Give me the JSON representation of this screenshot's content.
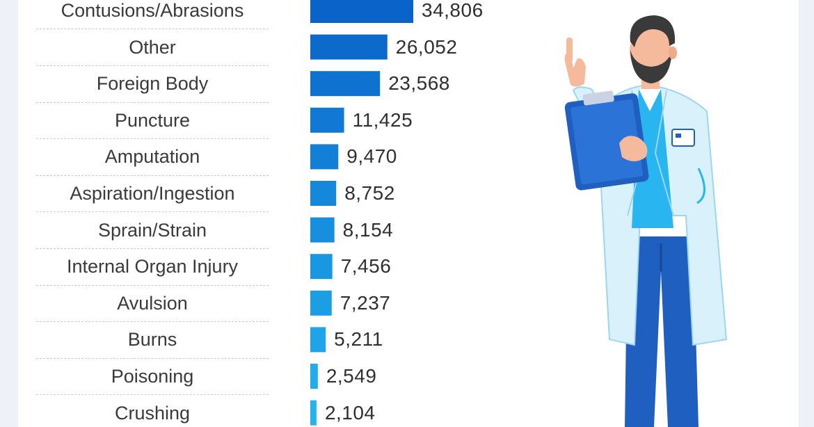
{
  "chart_data": {
    "type": "bar",
    "orientation": "horizontal",
    "categories": [
      "Contusions/Abrasions",
      "Other",
      "Foreign Body",
      "Puncture",
      "Amputation",
      "Aspiration/Ingestion",
      "Sprain/Strain",
      "Internal Organ Injury",
      "Avulsion",
      "Burns",
      "Poisoning",
      "Crushing"
    ],
    "values": [
      34806,
      26052,
      23568,
      11425,
      9470,
      8752,
      8154,
      7456,
      7237,
      5211,
      2549,
      2104
    ],
    "value_labels": [
      "34,806",
      "26,052",
      "23,568",
      "11,425",
      "9,470",
      "8,752",
      "8,154",
      "7,456",
      "7,237",
      "5,211",
      "2,549",
      "2,104"
    ],
    "title": "",
    "xlabel": "",
    "ylabel": "",
    "grid": false,
    "colors": {
      "bar_dark": "#0a63c9",
      "bar_light": "#23b4f0"
    }
  },
  "illustration": {
    "icon": "doctor-with-clipboard-illustration"
  }
}
